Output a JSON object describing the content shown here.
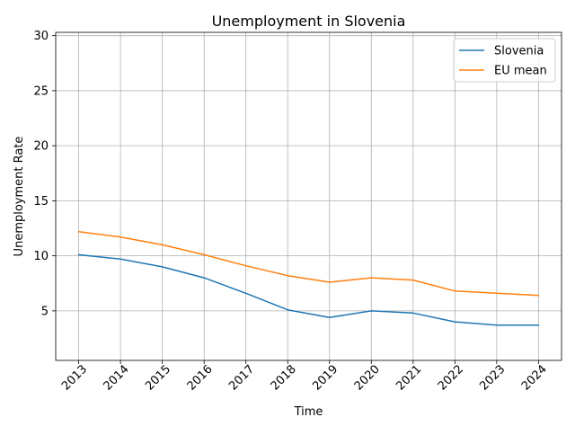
{
  "chart_data": {
    "type": "line",
    "title": "Unemployment in Slovenia",
    "xlabel": "Time",
    "ylabel": "Unemployment Rate",
    "x": [
      "2013",
      "2014",
      "2015",
      "2016",
      "2017",
      "2018",
      "2019",
      "2020",
      "2021",
      "2022",
      "2023",
      "2024"
    ],
    "series": [
      {
        "name": "Slovenia",
        "color": "#1f77b4",
        "values": [
          10.1,
          9.7,
          9.0,
          8.0,
          6.6,
          5.1,
          4.4,
          5.0,
          4.8,
          4.0,
          3.7,
          3.7
        ]
      },
      {
        "name": "EU mean",
        "color": "#ff7f0e",
        "values": [
          12.2,
          11.7,
          11.0,
          10.1,
          9.1,
          8.2,
          7.6,
          8.0,
          7.8,
          6.8,
          6.6,
          6.4
        ]
      }
    ],
    "ylim": [
      0.5,
      30.3
    ],
    "yticks": [
      5,
      10,
      15,
      20,
      25,
      30
    ],
    "grid": true,
    "legend_position": "top-right",
    "xtick_rotation": 45
  }
}
